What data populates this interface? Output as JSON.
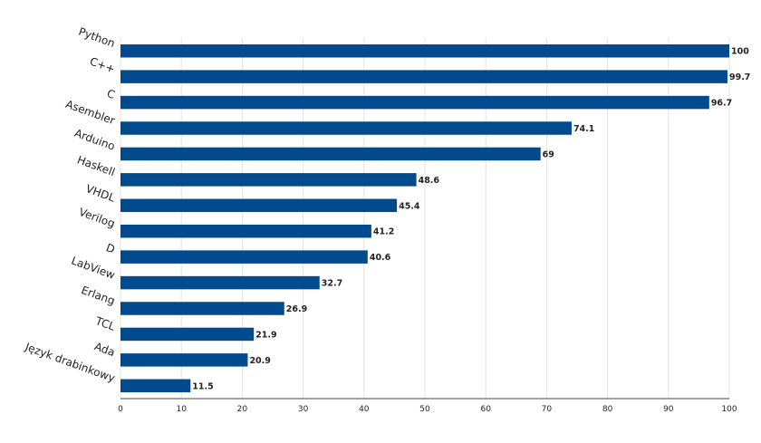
{
  "chart_data": {
    "type": "bar",
    "orientation": "horizontal",
    "categories": [
      "Python",
      "C++",
      "C",
      "Asembler",
      "Arduino",
      "Haskell",
      "VHDL",
      "Verilog",
      "D",
      "LabView",
      "Erlang",
      "TCL",
      "Ada",
      "Język drabinkowy"
    ],
    "values": [
      100,
      99.7,
      96.7,
      74.1,
      69,
      48.6,
      45.4,
      41.2,
      40.6,
      32.7,
      26.9,
      21.9,
      20.9,
      11.5
    ],
    "value_labels": [
      "100",
      "99.7",
      "96.7",
      "74.1",
      "69",
      "48.6",
      "45.4",
      "41.2",
      "40.6",
      "32.7",
      "26.9",
      "21.9",
      "20.9",
      "11.5"
    ],
    "xticks": [
      "0",
      "10",
      "20",
      "30",
      "40",
      "50",
      "60",
      "70",
      "80",
      "90",
      "100"
    ],
    "xlim": [
      0,
      100
    ],
    "grid": true,
    "bar_color": "#004a8d"
  }
}
